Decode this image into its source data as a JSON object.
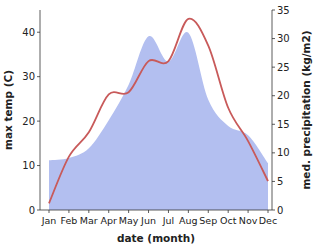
{
  "chart_data": {
    "type": "line",
    "categories": [
      "Jan",
      "Feb",
      "Mar",
      "Apr",
      "May",
      "Jun",
      "Jul",
      "Aug",
      "Sep",
      "Oct",
      "Nov",
      "Dec"
    ],
    "x_label": "date (month)",
    "y_label": "max temp (C)",
    "y2_label": "med. precipitation (kg/m2)",
    "ylim": [
      0,
      45
    ],
    "yticks": [
      0,
      10,
      20,
      30,
      40
    ],
    "y2lim": [
      0,
      35
    ],
    "y2ticks": [
      0,
      5,
      10,
      15,
      20,
      25,
      30,
      35
    ],
    "series": [
      {
        "type": "area",
        "axis": "y2",
        "color": "#b3bff0",
        "values": [
          8.7,
          9.1,
          10.8,
          15.7,
          21.9,
          30.4,
          26,
          31,
          19.3,
          14.7,
          13.1,
          8.2
        ]
      },
      {
        "type": "line",
        "color": "#c85a5a",
        "values": [
          1.5,
          12,
          17.5,
          26,
          26.5,
          33.5,
          33.5,
          43,
          37,
          23,
          15.5,
          6.5
        ]
      }
    ]
  }
}
